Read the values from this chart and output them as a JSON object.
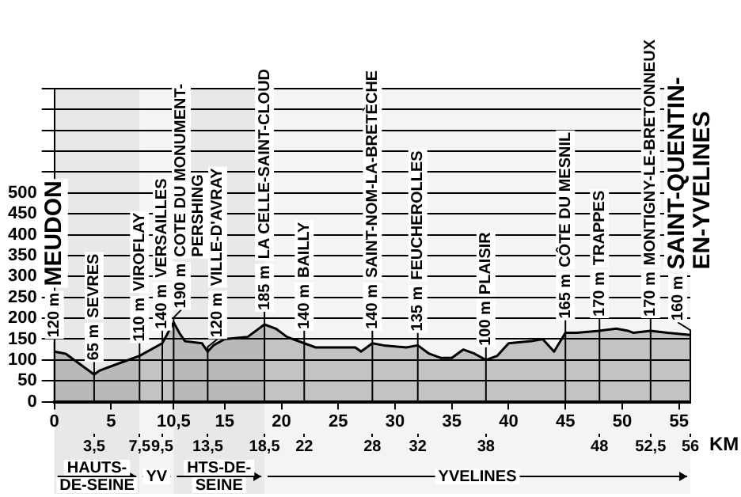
{
  "chart_data": {
    "type": "area",
    "xlabel": "KM",
    "series": [
      {
        "color": "#000000",
        "x": [
          0,
          1,
          2,
          3,
          3.5,
          4,
          5,
          6,
          7.5,
          9.5,
          10,
          10.5,
          11,
          11.5,
          13,
          13.5,
          14,
          15,
          17,
          18.5,
          19.5,
          20.5,
          22,
          23,
          25,
          26.5,
          27,
          28,
          29,
          31,
          32,
          33,
          34,
          35,
          36,
          37,
          38,
          39,
          40,
          42,
          43,
          44,
          45,
          46,
          48,
          49.5,
          50.5,
          51,
          52.5,
          54,
          56
        ],
        "values": [
          120,
          115,
          95,
          75,
          65,
          75,
          85,
          95,
          110,
          140,
          165,
          190,
          165,
          145,
          140,
          120,
          135,
          150,
          155,
          185,
          175,
          155,
          140,
          130,
          130,
          130,
          120,
          140,
          135,
          130,
          135,
          115,
          105,
          105,
          125,
          115,
          100,
          110,
          140,
          145,
          150,
          120,
          165,
          165,
          170,
          175,
          170,
          165,
          170,
          165,
          160
        ],
        "value_labels": [
          "120 m MEUDON",
          null,
          null,
          null,
          "65 m SEVRES",
          null,
          null,
          null,
          "110 m VIROFLAY",
          "140 m VERSAILLES",
          null,
          "190 m COTE DU MONUMENT-\nPERSHING",
          null,
          null,
          null,
          "120 m VILLE-D'AVRAY",
          null,
          null,
          null,
          "185 m LA CELLE-SAINT-CLOUD",
          null,
          null,
          "140 m BAILLY",
          null,
          null,
          null,
          null,
          "140 m SAINT-NOM-LA-BRETÈCHE",
          null,
          null,
          "135 m FEUCHEROLLES",
          null,
          null,
          null,
          null,
          null,
          "100 m PLAISIR",
          null,
          null,
          null,
          null,
          null,
          "165 m CÔTE DU MESNIL",
          null,
          "170 m TRAPPES",
          null,
          null,
          null,
          "170 m MONTIGNY-LE-BRETONNEUX",
          null,
          "160 m SAINT-QUENTIN-\nEN-YVELINES"
        ]
      }
    ],
    "bands": [
      {
        "axis": "x",
        "from": 0,
        "to": 7.5,
        "label": "HAUTS-\nDE-SEINE"
      },
      {
        "axis": "x",
        "from": 7.5,
        "to": 10.5,
        "label": "YV"
      },
      {
        "axis": "x",
        "from": 10.5,
        "to": 18.5,
        "label": "HTS-DE-\nSEINE"
      },
      {
        "axis": "x",
        "from": 18.5,
        "to": 56,
        "label": "YVELINES"
      }
    ],
    "xlim": [
      0,
      56
    ],
    "xticks": [
      0,
      5,
      {
        "value": 10.5,
        "label": "10,5"
      },
      15,
      20,
      25,
      30,
      35,
      40,
      45,
      50,
      55
    ],
    "x2lim": [
      0,
      56
    ],
    "x2ticks": [
      {
        "value": 3.5,
        "label": "3,5"
      },
      {
        "value": 7.5,
        "label": "7,5"
      },
      {
        "value": 9.5,
        "label": "9,5"
      },
      {
        "value": 13.5,
        "label": "13,5"
      },
      {
        "value": 18.5,
        "label": "18,5"
      },
      22,
      28,
      32,
      38,
      48,
      {
        "value": 52.5,
        "label": "52,5"
      },
      56
    ],
    "ylim": [
      0,
      750
    ],
    "yticks": [
      0,
      50,
      100,
      150,
      200,
      250,
      300,
      350,
      400,
      450,
      500,
      {
        "value": 550,
        "label": null
      },
      {
        "value": 600,
        "label": null
      },
      {
        "value": 650,
        "label": null
      },
      {
        "value": 700,
        "label": null
      },
      {
        "value": 750,
        "label": null
      }
    ],
    "grid": "y",
    "legend": false
  }
}
